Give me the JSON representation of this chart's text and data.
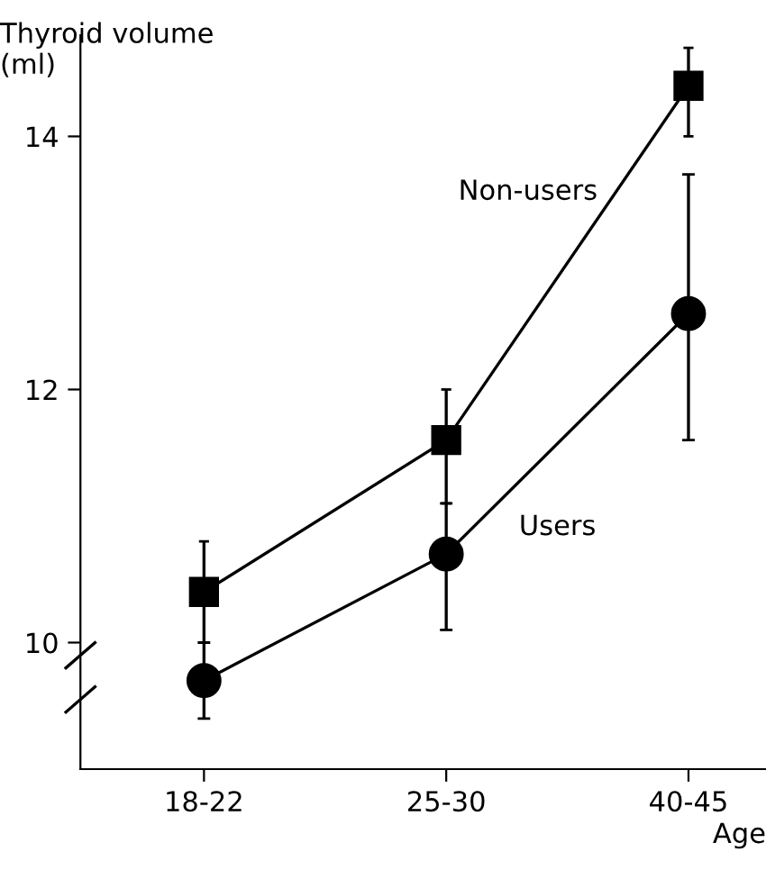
{
  "chart_data": {
    "type": "line",
    "xlabel": "Age",
    "ylabel": "Thyroid volume\n(ml)",
    "categories": [
      "18-22",
      "25-30",
      "40-45"
    ],
    "series": [
      {
        "name": "Non-users",
        "color": "#000000",
        "marker": "square",
        "values": [
          10.4,
          11.6,
          14.4
        ],
        "errors": [
          [
            10.0,
            10.8
          ],
          [
            11.1,
            12.0
          ],
          [
            14.0,
            14.7
          ]
        ]
      },
      {
        "name": "Users",
        "color": "#000000",
        "marker": "circle",
        "values": [
          9.7,
          10.7,
          12.6
        ],
        "errors": [
          [
            9.4,
            10.0
          ],
          [
            10.1,
            11.1
          ],
          [
            11.6,
            13.7
          ]
        ]
      }
    ],
    "ylim": [
      9.0,
      14.8
    ],
    "yticks": [
      10,
      12,
      14
    ],
    "grid": false,
    "legend": false,
    "line_style": "solid"
  }
}
